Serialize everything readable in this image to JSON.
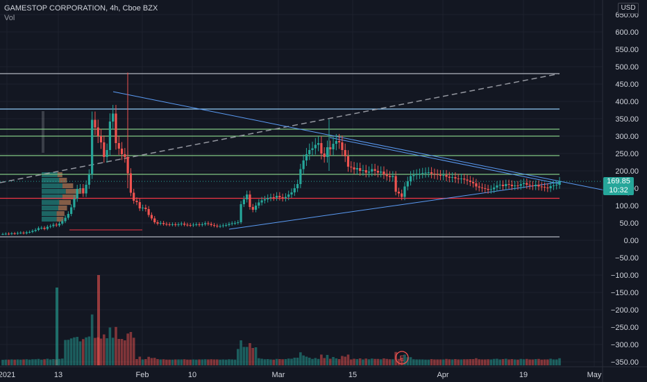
{
  "header": {
    "title": "GAMESTOP CORPORATION, 4h, Cboe BZX",
    "volume_label": "Vol",
    "currency": "USD"
  },
  "price_tag": {
    "price": "169.85",
    "countdown": "10:32",
    "color": "#26a69a"
  },
  "event_marker": {
    "label": "E"
  },
  "colors": {
    "background": "#131722",
    "up": "#26a69a",
    "down": "#ef5350",
    "grid": "#1e222d",
    "trendline": "#5b9cf6",
    "support_green": "#81c784",
    "resistance_red": "#f23645",
    "level_blue": "#90caf9",
    "level_white": "#b2b5be"
  },
  "chart_data": {
    "type": "candlestick",
    "title": "GAMESTOP CORPORATION, 4h, Cboe BZX",
    "ylabel": "USD",
    "ylim": [
      -360,
      700
    ],
    "y_ticks": [
      "650.00",
      "600.00",
      "550.00",
      "500.00",
      "450.00",
      "400.00",
      "350.00",
      "300.00",
      "250.00",
      "200.00",
      "150.00",
      "100.00",
      "50.00",
      "0.00",
      "−50.00",
      "−100.00",
      "−150.00",
      "−200.00",
      "−250.00",
      "−300.00",
      "−350.00"
    ],
    "y_tick_values": [
      650,
      600,
      550,
      500,
      450,
      400,
      350,
      300,
      250,
      200,
      150,
      100,
      50,
      0,
      -50,
      -100,
      -150,
      -200,
      -250,
      -300,
      -350
    ],
    "x_ticks": [
      "2021",
      "13",
      "Feb",
      "10",
      "Mar",
      "15",
      "Apr",
      "19",
      "May"
    ],
    "grid": true,
    "horizontal_levels": [
      {
        "value": 480,
        "color": "#b2b5be"
      },
      {
        "value": 378,
        "color": "#90caf9"
      },
      {
        "value": 320,
        "color": "#81c784"
      },
      {
        "value": 300,
        "color": "#81c784"
      },
      {
        "value": 244,
        "color": "#81c784"
      },
      {
        "value": 190,
        "color": "#81c784"
      },
      {
        "value": 121,
        "color": "#f23645"
      },
      {
        "value": 10,
        "color": "#b2b5be"
      }
    ],
    "price_series": {
      "name": "GME",
      "closes": [
        18,
        19,
        18,
        20,
        19,
        21,
        22,
        20,
        23,
        24,
        27,
        30,
        35,
        36,
        33,
        39,
        41,
        45,
        43,
        48,
        55,
        65,
        76,
        95,
        120,
        148,
        150,
        135,
        160,
        190,
        347,
        325,
        300,
        282,
        240,
        260,
        342,
        365,
        280,
        264,
        248,
        240,
        193,
        137,
        114,
        110,
        92,
        94,
        90,
        73,
        63,
        52,
        48,
        50,
        47,
        46,
        45,
        46,
        44,
        46,
        48,
        45,
        44,
        43,
        45,
        46,
        44,
        46,
        49,
        47,
        44,
        42,
        40,
        41,
        43,
        44,
        47,
        49,
        50,
        52,
        104,
        118,
        132,
        96,
        88,
        100,
        109,
        115,
        118,
        122,
        124,
        123,
        128,
        124,
        121,
        125,
        132,
        138,
        150,
        162,
        205,
        230,
        248,
        260,
        265,
        275,
        280,
        250,
        240,
        268,
        262,
        278,
        286,
        282,
        260,
        242,
        212,
        210,
        204,
        208,
        200,
        202,
        195,
        198,
        205,
        200,
        195,
        198,
        190,
        185,
        182,
        185,
        140,
        135,
        125,
        155,
        170,
        185,
        188,
        190,
        192,
        194,
        195,
        196,
        192,
        190,
        188,
        186,
        188,
        183,
        180,
        182,
        178,
        176,
        178,
        175,
        172,
        168,
        164,
        155,
        152,
        150,
        148,
        145,
        147,
        152,
        158,
        160,
        156,
        162,
        160,
        156,
        158,
        157,
        162,
        165,
        160,
        158,
        156,
        160,
        155,
        154,
        152,
        150,
        156,
        158,
        160,
        169
      ]
    },
    "volume_unit": "relative"
  }
}
